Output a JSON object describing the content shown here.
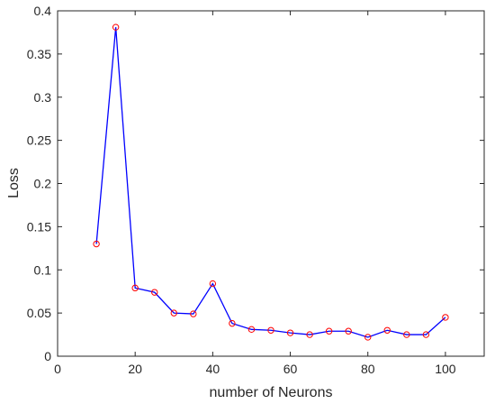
{
  "chart_data": {
    "type": "line",
    "title": "",
    "xlabel": "number of Neurons",
    "ylabel": "Loss",
    "xlim": [
      0,
      110
    ],
    "ylim": [
      0,
      0.4
    ],
    "xticks": [
      0,
      20,
      40,
      60,
      80,
      100
    ],
    "yticks": [
      0,
      0.05,
      0.1,
      0.15,
      0.2,
      0.25,
      0.3,
      0.35,
      0.4
    ],
    "xtick_labels": [
      "0",
      "20",
      "40",
      "60",
      "80",
      "100"
    ],
    "ytick_labels": [
      "0",
      "0.05",
      "0.1",
      "0.15",
      "0.2",
      "0.25",
      "0.3",
      "0.35",
      "0.4"
    ],
    "grid": false,
    "series": [
      {
        "line_color": "#0000ff",
        "marker_color": "#ff0000",
        "marker": "circle",
        "x": [
          10,
          15,
          20,
          25,
          30,
          35,
          40,
          45,
          50,
          55,
          60,
          65,
          70,
          75,
          80,
          85,
          90,
          95,
          100
        ],
        "y": [
          0.13,
          0.381,
          0.079,
          0.074,
          0.05,
          0.049,
          0.084,
          0.038,
          0.031,
          0.03,
          0.027,
          0.025,
          0.029,
          0.029,
          0.022,
          0.03,
          0.025,
          0.025,
          0.045
        ]
      }
    ]
  }
}
